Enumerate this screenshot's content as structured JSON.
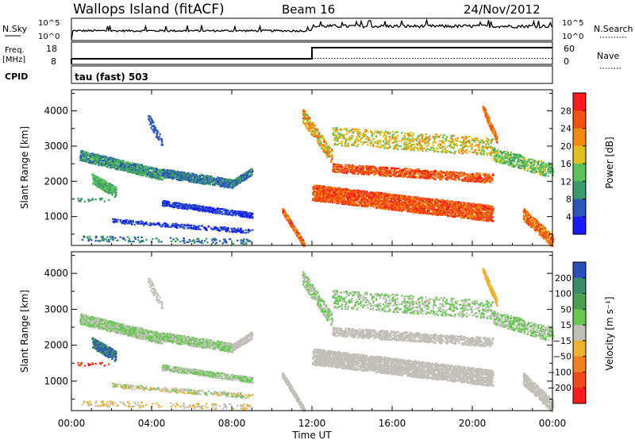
{
  "header": {
    "title": "Wallops Island (fitACF)",
    "beam": "Beam 16",
    "date": "24/Nov/2012"
  },
  "top_panels": {
    "nsky_label": "N.Sky",
    "nsearch_label": "N.Search",
    "nsky_ticks": [
      "10^5",
      "10^0"
    ],
    "nsearch_ticks": [
      "10^5",
      "10^0"
    ],
    "freq_label_line1": "Freq.",
    "freq_label_line2": "[MHz]",
    "freq_ticks": [
      "18",
      "8"
    ],
    "nave_label": "Nave",
    "nave_ticks": [
      "60",
      "0"
    ],
    "cpid_label": "CPID",
    "cpid_value": "tau (fast) 503"
  },
  "colorbars": {
    "power": {
      "label": "Power [dB]",
      "ticks": [
        "28",
        "24",
        "20",
        "16",
        "12",
        "8",
        "4"
      ],
      "colors": [
        "#1a1aff",
        "#2a56b8",
        "#3a9a6a",
        "#5cc35c",
        "#e0c020",
        "#f08a10",
        "#f05010",
        "#ff1a1a"
      ]
    },
    "velocity": {
      "label": "Velocity [m s⁻¹]",
      "ticks": [
        "200",
        "100",
        "50",
        "15",
        "−15",
        "−50",
        "−100",
        "−200"
      ],
      "colors": [
        "#2a4fb8",
        "#3a8a6a",
        "#4aa050",
        "#66c850",
        "#c0c0b8",
        "#f0b030",
        "#f08020",
        "#f04818",
        "#ff1a1a"
      ]
    }
  },
  "chart_data": {
    "type": "heatmap",
    "xlabel": "Time UT",
    "ylabel": "Slant Range [km]",
    "x_ticks": [
      "00:00",
      "04:00",
      "08:00",
      "12:00",
      "16:00",
      "20:00",
      "00:00"
    ],
    "x_range_hours": [
      0,
      24
    ],
    "y_range_km": [
      180,
      4600
    ],
    "y_ticks": [
      "4000",
      "3000",
      "2000",
      "1000"
    ],
    "frequency_series_mhz": [
      {
        "hours_start": 0,
        "hours_end": 12,
        "value": 10.5
      },
      {
        "hours_start": 12,
        "hours_end": 24,
        "value": 15.5
      }
    ],
    "nave_series": [
      {
        "hours_start": 0,
        "hours_end": 12,
        "value": 16
      },
      {
        "hours_start": 12,
        "hours_end": 24,
        "value": 16
      }
    ]
  }
}
